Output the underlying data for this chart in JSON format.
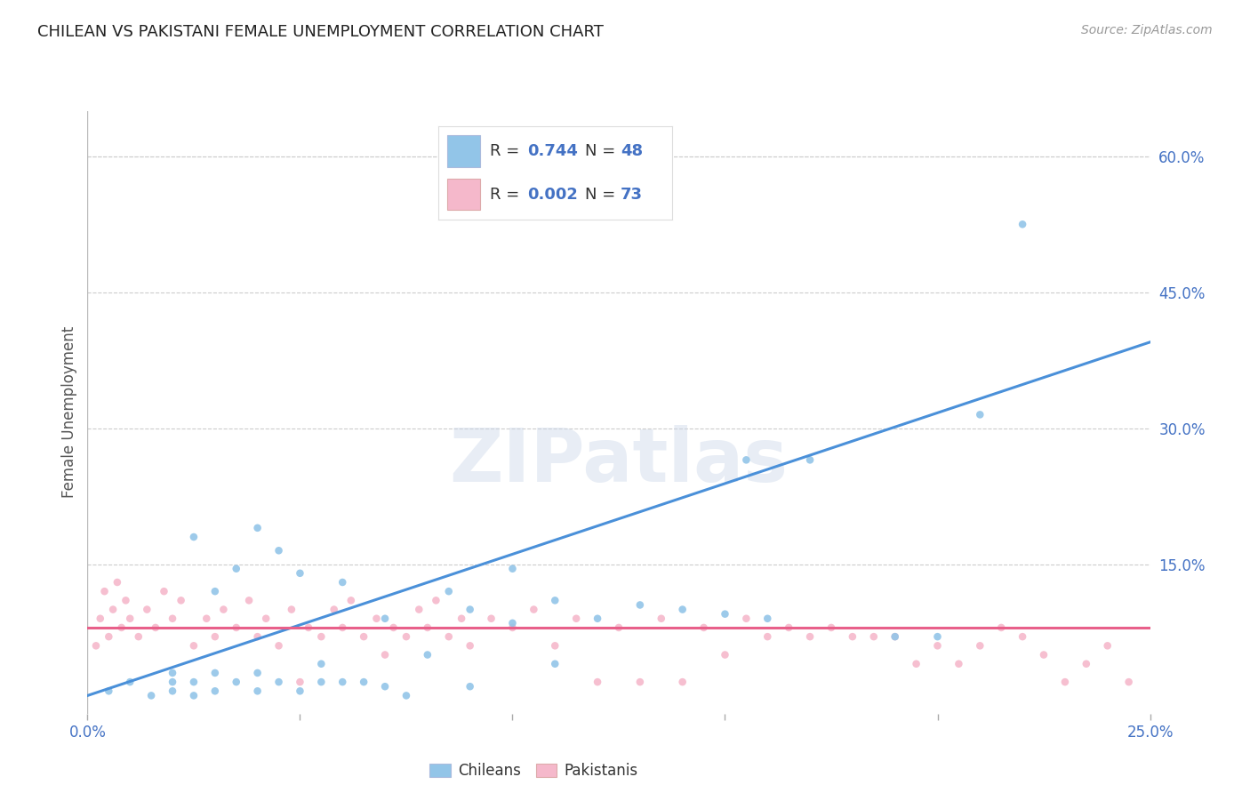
{
  "title": "CHILEAN VS PAKISTANI FEMALE UNEMPLOYMENT CORRELATION CHART",
  "source_text": "Source: ZipAtlas.com",
  "ylabel": "Female Unemployment",
  "xlim": [
    0.0,
    0.25
  ],
  "ylim": [
    -0.015,
    0.65
  ],
  "xticks": [
    0.0,
    0.05,
    0.1,
    0.15,
    0.2,
    0.25
  ],
  "xtick_labels": [
    "0.0%",
    "",
    "",
    "",
    "",
    "25.0%"
  ],
  "ytick_positions_right": [
    0.0,
    0.15,
    0.3,
    0.45,
    0.6
  ],
  "ytick_labels_right": [
    "",
    "15.0%",
    "30.0%",
    "45.0%",
    "60.0%"
  ],
  "chilean_color": "#92C5E8",
  "pakistani_color": "#F5B8CB",
  "chilean_line_color": "#4A90D9",
  "pakistani_line_color": "#E8608A",
  "watermark": "ZIPatlas",
  "background_color": "#ffffff",
  "grid_color": "#cccccc",
  "title_color": "#222222",
  "axis_label_color": "#555555",
  "tick_color": "#4472C4",
  "legend_color": "#4472C4",
  "chilean_R": "0.744",
  "chilean_N": "48",
  "pakistani_R": "0.002",
  "pakistani_N": "73",
  "chilean_scatter_x": [
    0.005,
    0.01,
    0.015,
    0.02,
    0.02,
    0.02,
    0.025,
    0.025,
    0.025,
    0.03,
    0.03,
    0.03,
    0.035,
    0.035,
    0.04,
    0.04,
    0.04,
    0.045,
    0.045,
    0.05,
    0.05,
    0.055,
    0.055,
    0.06,
    0.06,
    0.065,
    0.07,
    0.07,
    0.075,
    0.08,
    0.085,
    0.09,
    0.09,
    0.1,
    0.1,
    0.11,
    0.11,
    0.12,
    0.13,
    0.14,
    0.15,
    0.155,
    0.16,
    0.17,
    0.19,
    0.2,
    0.21,
    0.22
  ],
  "chilean_scatter_y": [
    0.01,
    0.02,
    0.005,
    0.01,
    0.02,
    0.03,
    0.005,
    0.02,
    0.18,
    0.01,
    0.03,
    0.12,
    0.02,
    0.145,
    0.01,
    0.03,
    0.19,
    0.02,
    0.165,
    0.01,
    0.14,
    0.02,
    0.04,
    0.02,
    0.13,
    0.02,
    0.015,
    0.09,
    0.005,
    0.05,
    0.12,
    0.015,
    0.1,
    0.085,
    0.145,
    0.04,
    0.11,
    0.09,
    0.105,
    0.1,
    0.095,
    0.265,
    0.09,
    0.265,
    0.07,
    0.07,
    0.315,
    0.525
  ],
  "pakistani_scatter_x": [
    0.002,
    0.003,
    0.004,
    0.005,
    0.006,
    0.007,
    0.008,
    0.009,
    0.01,
    0.012,
    0.014,
    0.016,
    0.018,
    0.02,
    0.022,
    0.025,
    0.028,
    0.03,
    0.032,
    0.035,
    0.038,
    0.04,
    0.042,
    0.045,
    0.048,
    0.05,
    0.052,
    0.055,
    0.058,
    0.06,
    0.062,
    0.065,
    0.068,
    0.07,
    0.072,
    0.075,
    0.078,
    0.08,
    0.082,
    0.085,
    0.088,
    0.09,
    0.095,
    0.1,
    0.105,
    0.11,
    0.115,
    0.12,
    0.125,
    0.13,
    0.135,
    0.14,
    0.145,
    0.15,
    0.155,
    0.16,
    0.165,
    0.17,
    0.175,
    0.18,
    0.185,
    0.19,
    0.195,
    0.2,
    0.205,
    0.21,
    0.215,
    0.22,
    0.225,
    0.23,
    0.235,
    0.24,
    0.245
  ],
  "pakistani_scatter_y": [
    0.06,
    0.09,
    0.12,
    0.07,
    0.1,
    0.13,
    0.08,
    0.11,
    0.09,
    0.07,
    0.1,
    0.08,
    0.12,
    0.09,
    0.11,
    0.06,
    0.09,
    0.07,
    0.1,
    0.08,
    0.11,
    0.07,
    0.09,
    0.06,
    0.1,
    0.02,
    0.08,
    0.07,
    0.1,
    0.08,
    0.11,
    0.07,
    0.09,
    0.05,
    0.08,
    0.07,
    0.1,
    0.08,
    0.11,
    0.07,
    0.09,
    0.06,
    0.09,
    0.08,
    0.1,
    0.06,
    0.09,
    0.02,
    0.08,
    0.02,
    0.09,
    0.02,
    0.08,
    0.05,
    0.09,
    0.07,
    0.08,
    0.07,
    0.08,
    0.07,
    0.07,
    0.07,
    0.04,
    0.06,
    0.04,
    0.06,
    0.08,
    0.07,
    0.05,
    0.02,
    0.04,
    0.06,
    0.02
  ],
  "chilean_line_x": [
    0.0,
    0.25
  ],
  "chilean_line_y": [
    0.005,
    0.395
  ],
  "pakistani_line_x": [
    0.0,
    0.25
  ],
  "pakistani_line_y": [
    0.08,
    0.08
  ]
}
